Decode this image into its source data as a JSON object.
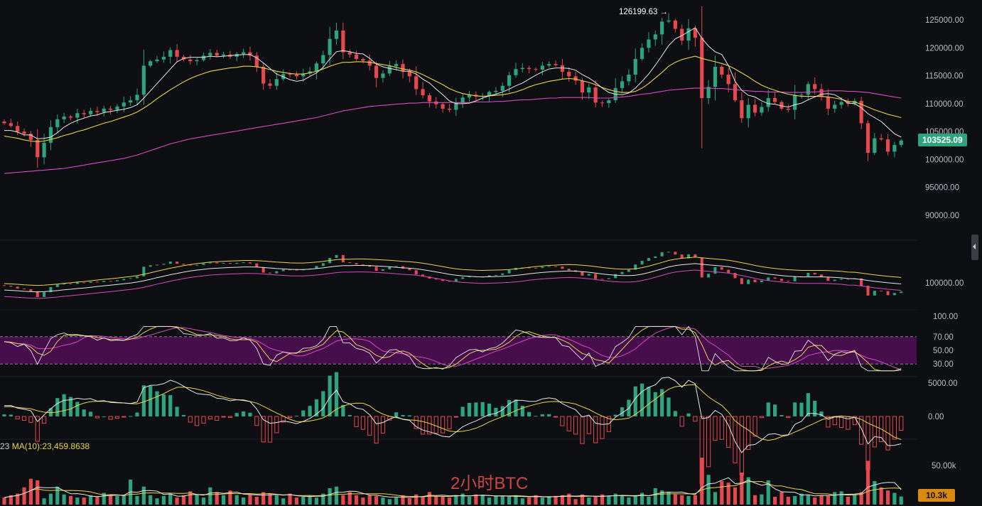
{
  "watermark": "2小时BTC",
  "high_marker": "126199.63 →",
  "current_price_label": "103525.09",
  "volume_tag": "10.3k",
  "ma_legend": {
    "prefix": "23",
    "ma10": "MA(10):23,459.8638"
  },
  "colors": {
    "up": "#2ea37d",
    "down": "#e5494d",
    "ma_fast": "#e6e6e6",
    "ma_mid": "#e8d44d",
    "ma_slow": "#d54ac2",
    "rsi_band": "#5a0f5e",
    "background": "#0e0f13"
  },
  "chart_data": [
    {
      "type": "candlestick",
      "panel": "price",
      "y_ticks": [
        "125000.00",
        "120000.00",
        "115000.00",
        "110000.00",
        "105000.00",
        "100000.00",
        "95000.00",
        "90000.00"
      ],
      "ylim": [
        86000,
        127000
      ],
      "high_label": 126199.63,
      "last_price": 103525.09,
      "closes": [
        106500,
        106000,
        105000,
        104600,
        103500,
        100400,
        103000,
        105800,
        107200,
        107700,
        107500,
        108300,
        108100,
        108700,
        108500,
        109100,
        108900,
        109500,
        110200,
        110600,
        111600,
        116800,
        117600,
        117900,
        118400,
        119600,
        118400,
        117900,
        117600,
        117800,
        118600,
        119100,
        118600,
        118800,
        118400,
        118900,
        119200,
        118600,
        116600,
        113600,
        113200,
        114400,
        115300,
        115200,
        114900,
        115400,
        115800,
        117200,
        118700,
        121600,
        123100,
        119200,
        118800,
        118000,
        117700,
        116800,
        114600,
        115400,
        116700,
        117100,
        115800,
        114900,
        112600,
        111500,
        110400,
        109900,
        109100,
        108900,
        110200,
        111100,
        111600,
        111300,
        111400,
        112100,
        112300,
        113200,
        115100,
        116200,
        116400,
        116200,
        116100,
        116800,
        117100,
        116900,
        115700,
        114900,
        114100,
        112000,
        112900,
        110200,
        110100,
        110600,
        112800,
        114000,
        115200,
        118000,
        120000,
        121500,
        122400,
        124700,
        124900,
        123400,
        121300,
        123500,
        121800,
        111000,
        113000,
        116600,
        115200,
        113500,
        110600,
        107400,
        109800,
        108400,
        109400,
        111000,
        110300,
        109100,
        108900,
        111500,
        111600,
        113500,
        112600,
        111200,
        109100,
        109800,
        110300,
        110000,
        110500,
        106500,
        101200,
        103800,
        103600,
        101400,
        102600,
        103400
      ],
      "ma_fast": [
        105200,
        105200,
        104900,
        104400,
        104400,
        103700,
        103800,
        104000,
        104800,
        105800,
        106500,
        107000,
        107400,
        107800,
        108000,
        108400,
        108600,
        108800,
        109000,
        109300,
        109800,
        111000,
        112300,
        113600,
        114900,
        116200,
        117500,
        118100,
        118300,
        118300,
        118300,
        118500,
        118400,
        118500,
        118600,
        118700,
        118800,
        118800,
        118200,
        117300,
        116300,
        115300,
        114800,
        114300,
        114000,
        114200,
        114900,
        115500,
        116500,
        118000,
        119300,
        119500,
        119300,
        119000,
        118900,
        118100,
        117100,
        116600,
        116300,
        116100,
        115800,
        115800,
        115300,
        114400,
        113700,
        112600,
        111600,
        110500,
        110000,
        110000,
        110100,
        110500,
        111000,
        111400,
        111700,
        112100,
        112600,
        113200,
        113700,
        114400,
        115100,
        115700,
        116200,
        116400,
        116400,
        116300,
        116000,
        115200,
        114600,
        113800,
        112800,
        112000,
        111700,
        111600,
        111900,
        112800,
        114000,
        115300,
        116900,
        118600,
        120400,
        121600,
        122200,
        122900,
        123600,
        121700,
        120300,
        119300,
        118800,
        116800,
        114000,
        112400,
        111500,
        111200,
        110500,
        110000,
        109900,
        109600,
        109400,
        109800,
        110100,
        110700,
        111200,
        111700,
        111800,
        111600,
        110900,
        110100,
        110000,
        109300,
        108200,
        107500,
        106800,
        105700,
        104600,
        104000
      ],
      "ma_mid": [
        104200,
        104000,
        103800,
        103500,
        103300,
        103200,
        103300,
        103600,
        103900,
        104300,
        104600,
        105000,
        105300,
        105700,
        106100,
        106500,
        106800,
        107200,
        107600,
        108000,
        108500,
        109200,
        110000,
        110900,
        111700,
        112500,
        113200,
        113900,
        114500,
        115000,
        115400,
        115800,
        116000,
        116200,
        116400,
        116500,
        116700,
        116700,
        116600,
        116400,
        116100,
        115800,
        115600,
        115400,
        115300,
        115300,
        115500,
        115800,
        116200,
        116700,
        117100,
        117400,
        117400,
        117500,
        117500,
        117400,
        117200,
        117000,
        116800,
        116500,
        116200,
        116000,
        115700,
        115200,
        114600,
        114000,
        113400,
        112700,
        112200,
        111800,
        111600,
        111400,
        111300,
        111400,
        111500,
        111600,
        111800,
        112100,
        112500,
        113000,
        113400,
        113700,
        114000,
        114200,
        114400,
        114500,
        114400,
        114100,
        113800,
        113400,
        112900,
        112500,
        112200,
        112000,
        112000,
        112200,
        112800,
        113600,
        114600,
        115600,
        116700,
        117400,
        117900,
        118200,
        118500,
        118100,
        117800,
        117500,
        117200,
        116800,
        116200,
        115500,
        114800,
        114000,
        113300,
        112800,
        112400,
        112000,
        111700,
        111500,
        111300,
        111300,
        111300,
        111300,
        111200,
        111000,
        110800,
        110400,
        110300,
        109900,
        109400,
        108900,
        108500,
        108100,
        107800,
        107500
      ],
      "ma_slow": [
        97500,
        97600,
        97700,
        97800,
        97900,
        98000,
        98100,
        98200,
        98300,
        98400,
        98600,
        98800,
        99000,
        99200,
        99400,
        99600,
        99800,
        100000,
        100200,
        100500,
        100800,
        101200,
        101600,
        102000,
        102400,
        102800,
        103100,
        103400,
        103700,
        103900,
        104100,
        104300,
        104500,
        104700,
        104900,
        105100,
        105300,
        105500,
        105700,
        105900,
        106100,
        106300,
        106500,
        106700,
        106900,
        107100,
        107300,
        107500,
        107800,
        108100,
        108400,
        108700,
        108900,
        109100,
        109300,
        109500,
        109600,
        109700,
        109800,
        109900,
        110000,
        110100,
        110100,
        110200,
        110200,
        110200,
        110200,
        110200,
        110200,
        110200,
        110200,
        110300,
        110300,
        110300,
        110400,
        110400,
        110500,
        110600,
        110700,
        110700,
        110800,
        110900,
        111000,
        111000,
        111100,
        111100,
        111100,
        111100,
        111100,
        111000,
        111000,
        111000,
        111100,
        111200,
        111300,
        111500,
        111700,
        111800,
        112000,
        112200,
        112400,
        112500,
        112600,
        112700,
        112800,
        112800,
        112800,
        112700,
        112700,
        112600,
        112500,
        112400,
        112300,
        112200,
        112200,
        112100,
        112100,
        112100,
        112000,
        112000,
        112000,
        112100,
        112100,
        112200,
        112300,
        112300,
        112300,
        112200,
        112200,
        112100,
        112000,
        111800,
        111600,
        111400,
        111200,
        111000
      ]
    },
    {
      "type": "line",
      "panel": "indicator",
      "y_ticks": [
        "100000.00"
      ]
    },
    {
      "type": "line",
      "panel": "rsi",
      "y_ticks": [
        "100.00",
        "70.00",
        "50.00",
        "30.00"
      ],
      "ylim": [
        0,
        100
      ],
      "band": [
        30,
        70
      ]
    },
    {
      "type": "bar",
      "panel": "macd",
      "y_ticks": [
        "5000.00",
        "0.00"
      ],
      "ylim": [
        -7000,
        5500
      ]
    },
    {
      "type": "bar",
      "panel": "volume",
      "y_ticks": [
        "50.00k"
      ],
      "ylim": [
        0,
        72000
      ],
      "last_volume": 10300,
      "volumes": [
        9000,
        12000,
        14000,
        22000,
        33000,
        31000,
        8000,
        14000,
        23000,
        13000,
        11000,
        9000,
        9000,
        12000,
        10000,
        15000,
        12000,
        11000,
        12000,
        32000,
        11000,
        23000,
        12000,
        8000,
        11000,
        14000,
        9000,
        12000,
        17000,
        13000,
        9000,
        22000,
        16000,
        12000,
        18000,
        12000,
        9000,
        13000,
        10000,
        16000,
        14000,
        12000,
        8000,
        14000,
        9000,
        10000,
        11000,
        9000,
        14000,
        21000,
        23000,
        12000,
        16000,
        12000,
        9000,
        12000,
        11000,
        9000,
        7000,
        9000,
        12000,
        8000,
        13000,
        10000,
        16000,
        11000,
        10000,
        9000,
        12000,
        14000,
        10000,
        13000,
        12000,
        9000,
        11000,
        11000,
        10000,
        12000,
        8000,
        9000,
        12000,
        9000,
        10000,
        11000,
        12000,
        14000,
        7000,
        13000,
        9000,
        10000,
        13000,
        11000,
        14000,
        11000,
        9000,
        12000,
        15000,
        10000,
        21000,
        18000,
        16000,
        13000,
        12000,
        11000,
        12000,
        60000,
        38000,
        16000,
        30000,
        28000,
        22000,
        41000,
        35000,
        12000,
        13000,
        31000,
        10000,
        16000,
        10000,
        11000,
        14000,
        12000,
        9000,
        12000,
        11000,
        16000,
        17000,
        10000,
        13000,
        16000,
        56000,
        30000,
        22000,
        18000,
        15000,
        10300
      ]
    }
  ]
}
